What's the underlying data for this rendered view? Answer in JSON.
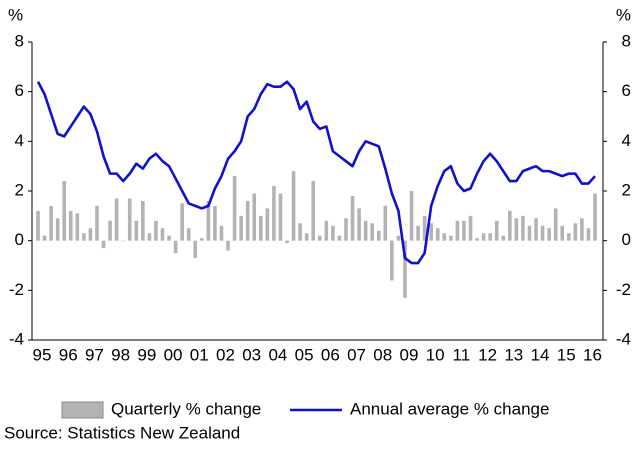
{
  "chart_data": {
    "type": "bar",
    "ylabel": "%",
    "y2label": "%",
    "source": "Source: Statistics New Zealand",
    "categories": [
      "95",
      null,
      null,
      null,
      "96",
      null,
      null,
      null,
      "97",
      null,
      null,
      null,
      "98",
      null,
      null,
      null,
      "99",
      null,
      null,
      null,
      "00",
      null,
      null,
      null,
      "01",
      null,
      null,
      null,
      "02",
      null,
      null,
      null,
      "03",
      null,
      null,
      null,
      "04",
      null,
      null,
      null,
      "05",
      null,
      null,
      null,
      "06",
      null,
      null,
      null,
      "07",
      null,
      null,
      null,
      "08",
      null,
      null,
      null,
      "09",
      null,
      null,
      null,
      "10",
      null,
      null,
      null,
      "11",
      null,
      null,
      null,
      "12",
      null,
      null,
      null,
      "13",
      null,
      null,
      null,
      "14",
      null,
      null,
      null,
      "15",
      null,
      null,
      null,
      "16",
      null
    ],
    "series": [
      {
        "name": "Quarterly % change",
        "type": "bar",
        "color": "#b3b3b3",
        "values": [
          1.2,
          0.2,
          1.4,
          0.9,
          2.4,
          1.2,
          1.1,
          0.3,
          0.5,
          1.4,
          -0.3,
          0.8,
          1.7,
          0.0,
          1.7,
          0.8,
          1.6,
          0.3,
          0.8,
          0.5,
          0.2,
          -0.5,
          1.5,
          0.5,
          -0.7,
          0.1,
          1.6,
          1.4,
          0.6,
          -0.4,
          2.6,
          1.0,
          1.6,
          1.9,
          1.0,
          1.3,
          2.2,
          1.9,
          -0.1,
          2.8,
          0.7,
          0.3,
          2.4,
          0.2,
          0.8,
          0.6,
          0.2,
          0.9,
          1.8,
          1.3,
          0.8,
          0.7,
          0.4,
          1.4,
          -1.6,
          0.2,
          -2.3,
          2.0,
          0.6,
          1.0,
          0.7,
          0.5,
          0.3,
          0.2,
          0.8,
          0.8,
          1.0,
          0.1,
          0.3,
          0.3,
          0.8,
          0.2,
          1.2,
          0.9,
          1.0,
          0.6,
          0.9,
          0.6,
          0.5,
          1.3,
          0.6,
          0.3,
          0.7,
          0.9,
          0.5,
          1.9
        ]
      },
      {
        "name": "Annual average % change",
        "type": "line",
        "color": "#1010d0",
        "values": [
          6.4,
          5.9,
          5.1,
          4.3,
          4.2,
          4.6,
          5.0,
          5.4,
          5.1,
          4.4,
          3.4,
          2.7,
          2.7,
          2.4,
          2.7,
          3.1,
          2.9,
          3.3,
          3.5,
          3.2,
          3.0,
          2.5,
          2.0,
          1.5,
          1.4,
          1.3,
          1.4,
          2.1,
          2.6,
          3.3,
          3.6,
          4.0,
          5.0,
          5.3,
          5.9,
          6.3,
          6.2,
          6.2,
          6.4,
          6.1,
          5.3,
          5.6,
          4.8,
          4.5,
          4.6,
          3.6,
          3.4,
          3.2,
          3.0,
          3.6,
          4.0,
          3.9,
          3.8,
          2.9,
          1.9,
          1.2,
          -0.7,
          -0.9,
          -0.9,
          -0.5,
          1.4,
          2.2,
          2.8,
          3.0,
          2.3,
          2.0,
          2.1,
          2.7,
          3.2,
          3.5,
          3.2,
          2.8,
          2.4,
          2.4,
          2.8,
          2.9,
          3.0,
          2.8,
          2.8,
          2.7,
          2.6,
          2.7,
          2.7,
          2.3,
          2.3,
          2.6
        ]
      }
    ],
    "ylim": [
      -4,
      8
    ],
    "yticks": [
      -4,
      -2,
      0,
      2,
      4,
      6,
      8
    ],
    "y2lim": [
      -4,
      8
    ],
    "y2ticks": [
      -4,
      -2,
      0,
      2,
      4,
      6,
      8
    ],
    "legend": "bottom"
  }
}
